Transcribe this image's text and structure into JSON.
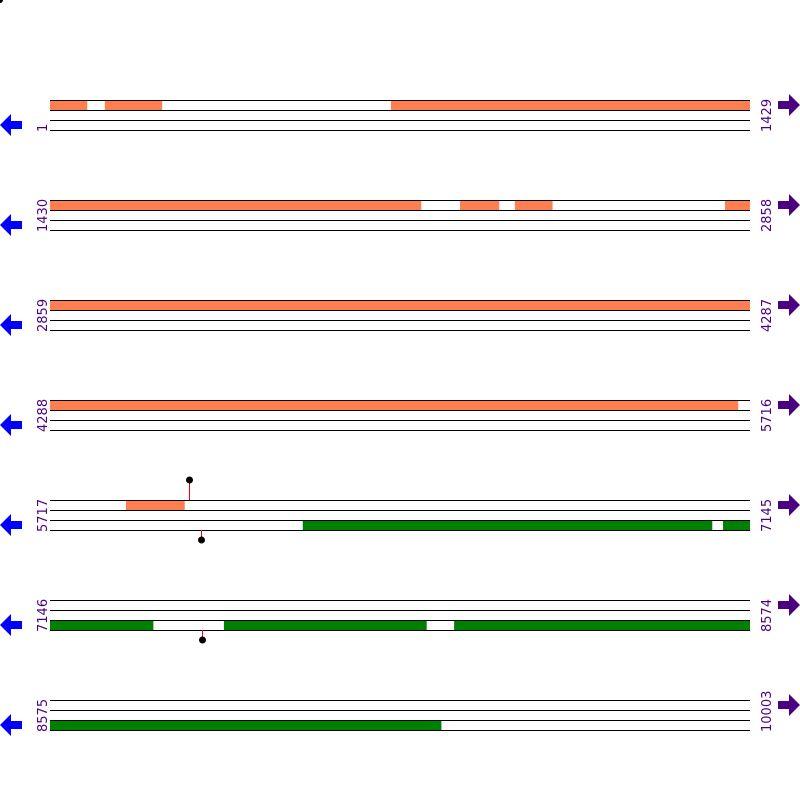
{
  "bases_per_row": 1429,
  "colors": {
    "forward_feature": "#ff7f50",
    "reverse_feature": "#008000",
    "label": "#4b0082",
    "left_arrow": "#0000ff",
    "right_arrow": "#4b0082",
    "marker_stem": "#ff0000",
    "marker_dot": "#000000"
  },
  "rows": [
    {
      "start": "1",
      "end": "1429",
      "start_num": 1,
      "end_num": 1429,
      "top": [
        [
          1,
          76
        ],
        [
          113,
          229
        ],
        [
          697,
          1429
        ]
      ],
      "bottom": [],
      "markers": []
    },
    {
      "start": "1430",
      "end": "2858",
      "start_num": 1430,
      "end_num": 2858,
      "top": [
        [
          1430,
          2187
        ],
        [
          2267,
          2346
        ],
        [
          2379,
          2455
        ],
        [
          2808,
          2858
        ]
      ],
      "bottom": [],
      "markers": []
    },
    {
      "start": "2859",
      "end": "4287",
      "start_num": 2859,
      "end_num": 4287,
      "top": [
        [
          2859,
          4287
        ]
      ],
      "bottom": [],
      "markers": []
    },
    {
      "start": "4288",
      "end": "5716",
      "start_num": 4288,
      "end_num": 5716,
      "top": [
        [
          4288,
          5692
        ]
      ],
      "bottom": [],
      "markers": []
    },
    {
      "start": "5717",
      "end": "7145",
      "start_num": 5717,
      "end_num": 7145,
      "top": [
        [
          5872,
          5991
        ]
      ],
      "bottom": [
        [
          6233,
          7068
        ],
        [
          7091,
          7145
        ]
      ],
      "markers": [
        {
          "pos": 6001,
          "strand": "top"
        },
        {
          "pos": 6025,
          "strand": "bottom"
        }
      ]
    },
    {
      "start": "7146",
      "end": "8574",
      "start_num": 7146,
      "end_num": 8574,
      "top": [],
      "bottom": [
        [
          7146,
          7356
        ],
        [
          7501,
          7914
        ],
        [
          7971,
          8574
        ]
      ],
      "markers": [
        {
          "pos": 7456,
          "strand": "bottom"
        }
      ]
    },
    {
      "start": "8575",
      "end": "10003",
      "start_num": 8575,
      "end_num": 10003,
      "top": [],
      "bottom": [
        [
          8575,
          9373
        ]
      ],
      "markers": []
    }
  ]
}
